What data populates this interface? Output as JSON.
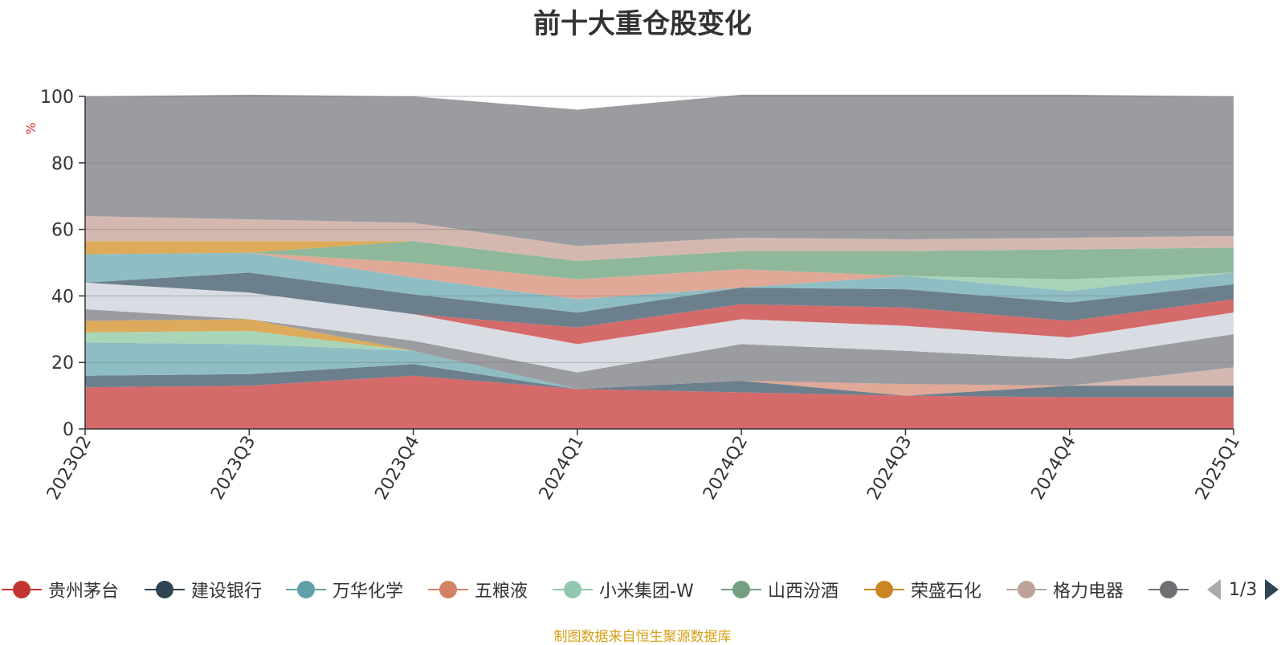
{
  "title": "前十大重仓股变化",
  "source_note": "制图数据来自恒生聚源数据库",
  "legend_page": "1/3",
  "chart_data": {
    "type": "area",
    "stacked": true,
    "ylabel": "%",
    "ylim": [
      0,
      100
    ],
    "yticks": [
      0,
      20,
      40,
      60,
      80,
      100
    ],
    "grid": true,
    "legend_position": "bottom",
    "categories": [
      "2023Q2",
      "2023Q3",
      "2023Q4",
      "2024Q1",
      "2024Q2",
      "2024Q3",
      "2024Q4",
      "2025Q1"
    ],
    "series": [
      {
        "name": "贵州茅台",
        "color": "#d46a6a",
        "values": [
          12.5,
          13,
          16,
          12,
          11,
          10,
          9.5,
          9.5
        ]
      },
      {
        "name": "建设银行",
        "color": "#6c7f8c",
        "values": [
          3.5,
          3.5,
          3.5,
          0,
          3.5,
          0,
          3.5,
          3.5
        ]
      },
      {
        "name": "万华化学",
        "color": "#8fbdc4",
        "values": [
          10,
          9,
          4,
          0,
          0,
          0,
          0,
          0
        ]
      },
      {
        "name": "五粮液",
        "color": "#e0a896",
        "values": [
          0,
          0,
          0,
          0,
          0,
          3.5,
          0,
          0
        ]
      },
      {
        "name": "小米集团-W",
        "color": "#a8d5b8",
        "values": [
          3,
          4,
          0,
          0,
          0,
          0,
          0,
          0
        ]
      },
      {
        "name": "山西汾酒",
        "color": "#8fb89a",
        "values": [
          0,
          0,
          0,
          0,
          0,
          0,
          0,
          0
        ]
      },
      {
        "name": "荣盛石化",
        "color": "#dcaa5a",
        "values": [
          3.5,
          3.5,
          0,
          0,
          0,
          0,
          0,
          0
        ]
      },
      {
        "name": "格力电器",
        "color": "#d4b8b0",
        "values": [
          0,
          0,
          0,
          0,
          0,
          0,
          0,
          5.5
        ]
      },
      {
        "name": "",
        "color": "#9a9ca0",
        "values": [
          3.5,
          0,
          3,
          5,
          11,
          10,
          8,
          10
        ]
      },
      {
        "name": "",
        "color": "#d9dde3",
        "values": [
          8,
          8,
          8,
          8.5,
          7.5,
          7.5,
          6.5,
          6.5
        ]
      },
      {
        "name": "",
        "color": "#d46a6a",
        "values": [
          0,
          0,
          0,
          5,
          4.5,
          5.5,
          5,
          4
        ]
      },
      {
        "name": "",
        "color": "#6c7f8c",
        "values": [
          0,
          6,
          6,
          4.5,
          5,
          5.5,
          5.5,
          4.5
        ]
      },
      {
        "name": "",
        "color": "#8fbdc4",
        "values": [
          8.5,
          6,
          5,
          4,
          0,
          4,
          3.5,
          3.5
        ]
      },
      {
        "name": "",
        "color": "#a8d5b8",
        "values": [
          0,
          0,
          0,
          0,
          0,
          0,
          3.5,
          0
        ]
      },
      {
        "name": "",
        "color": "#e0a896",
        "values": [
          0,
          0,
          4.5,
          6,
          5.5,
          0,
          0,
          0
        ]
      },
      {
        "name": "",
        "color": "#8fb89a",
        "values": [
          0,
          0,
          6.5,
          5.5,
          5.5,
          7.5,
          9,
          7.5
        ]
      },
      {
        "name": "",
        "color": "#dcaa5a",
        "values": [
          4,
          3.5,
          0,
          0,
          0,
          0,
          0,
          0
        ]
      },
      {
        "name": "",
        "color": "#d4b8b0",
        "values": [
          7.5,
          6.5,
          5.5,
          4.5,
          4,
          3.5,
          3.5,
          3.5
        ]
      },
      {
        "name": "",
        "color": "#9a9ca0",
        "values": [
          36,
          37.5,
          38,
          41,
          43,
          43.5,
          43,
          42
        ]
      }
    ]
  },
  "legend_items": [
    {
      "name": "贵州茅台",
      "color": "#c23531"
    },
    {
      "name": "建设银行",
      "color": "#2f4554"
    },
    {
      "name": "万华化学",
      "color": "#61a0a8"
    },
    {
      "name": "五粮液",
      "color": "#d48265"
    },
    {
      "name": "小米集团-W",
      "color": "#91c7ae"
    },
    {
      "name": "山西汾酒",
      "color": "#749f83"
    },
    {
      "name": "荣盛石化",
      "color": "#ca8622"
    },
    {
      "name": "格力电器",
      "color": "#bda29a"
    },
    {
      "name": "",
      "color": "#6e7074"
    }
  ]
}
